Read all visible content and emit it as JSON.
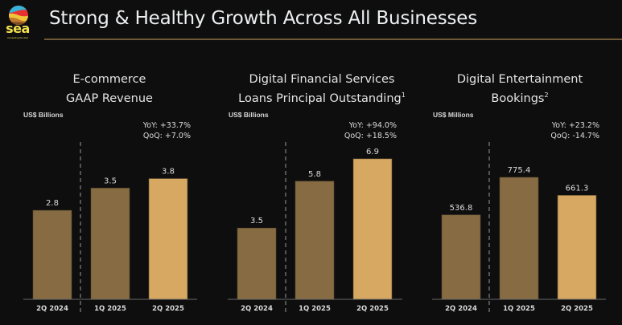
{
  "header": {
    "logo_text": "sea",
    "logo_tagline": "connecting the dots",
    "title": "Strong & Healthy Growth Across All Businesses"
  },
  "colors": {
    "background": "#0e0e0e",
    "bar_prior": "#866b43",
    "bar_current": "#d6a862",
    "bar_outline": "#5a4a2e",
    "axis": "#6a6a6a",
    "divider": "#6a6a6a",
    "rule": "#6e5a36"
  },
  "chart_data": [
    {
      "type": "bar",
      "title_line1": "E-commerce",
      "title_line2": "GAAP Revenue",
      "title_sup": "",
      "unit": "US$ Billions",
      "yoy": "YoY: +33.7%",
      "qoq": "QoQ: +7.0%",
      "categories": [
        "2Q 2024",
        "1Q 2025",
        "2Q 2025"
      ],
      "values": [
        2.8,
        3.5,
        3.8
      ],
      "value_labels": [
        "2.8",
        "3.5",
        "3.8"
      ],
      "highlight_index": 2,
      "divider_after_index": 0,
      "ylim": [
        0,
        5.0
      ],
      "grid": false
    },
    {
      "type": "bar",
      "title_line1": "Digital Financial Services",
      "title_line2": "Loans Principal Outstanding",
      "title_sup": "1",
      "unit": "US$ Billions",
      "yoy": "YoY: +94.0%",
      "qoq": "QoQ: +18.5%",
      "categories": [
        "2Q 2024",
        "1Q 2025",
        "2Q 2025"
      ],
      "values": [
        3.5,
        5.8,
        6.9
      ],
      "value_labels": [
        "3.5",
        "5.8",
        "6.9"
      ],
      "highlight_index": 2,
      "divider_after_index": 0,
      "ylim": [
        0,
        7.8
      ],
      "grid": false
    },
    {
      "type": "bar",
      "title_line1": "Digital Entertainment",
      "title_line2": "Bookings",
      "title_sup": "2",
      "unit": "US$ Millions",
      "yoy": "YoY: +23.2%",
      "qoq": "QoQ: -14.7%",
      "categories": [
        "2Q 2024",
        "1Q 2025",
        "2Q 2025"
      ],
      "values": [
        536.8,
        775.4,
        661.3
      ],
      "value_labels": [
        "536.8",
        "775.4",
        "661.3"
      ],
      "highlight_index": 2,
      "divider_after_index": 0,
      "ylim": [
        0,
        1010
      ],
      "grid": false
    }
  ]
}
